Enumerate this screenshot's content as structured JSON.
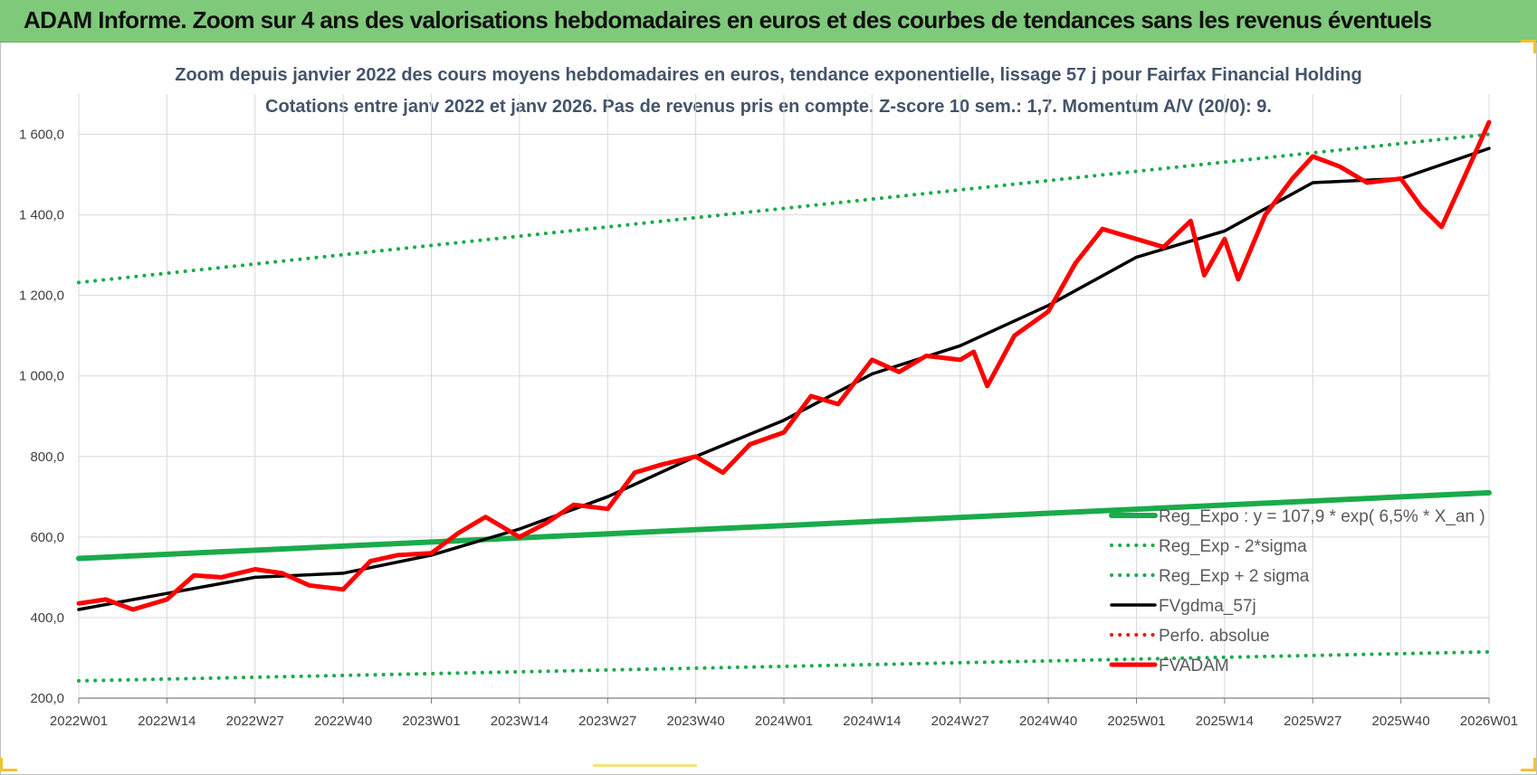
{
  "banner": {
    "title": "ADAM Informe. Zoom sur 4 ans des valorisations hebdomadaires en euros et des courbes de tendances sans les revenus éventuels",
    "background": "#7fc97a"
  },
  "chart_data": {
    "type": "line",
    "title_line1": "Zoom depuis janvier 2022 des cours moyens hebdomadaires en euros, tendance exponentielle, lissage 57 j pour Fairfax Financial Holding",
    "title_line2": "Cotations entre janv 2022 et janv 2026. Pas de revenus pris en compte. Z-score 10 sem.: 1,7. Momentum A/V (20/0): 9.",
    "x_tick_labels": [
      "2022W01",
      "2022W14",
      "2022W27",
      "2022W40",
      "2023W01",
      "2023W14",
      "2023W27",
      "2023W40",
      "2024W01",
      "2024W14",
      "2024W27",
      "2024W40",
      "2025W01",
      "2025W14",
      "2025W27",
      "2025W40",
      "2026W01"
    ],
    "y_tick_labels": [
      "200,0",
      "400,0",
      "600,0",
      "800,0",
      "1 000,0",
      "1 200,0",
      "1 400,0",
      "1 600,0"
    ],
    "y_ticks": [
      200,
      400,
      600,
      800,
      1000,
      1200,
      1400,
      1600
    ],
    "ylim": [
      200,
      1700
    ],
    "grid": true,
    "legend_position": "bottom-right",
    "series": [
      {
        "name": "Reg_Expo : y = 107,9 * exp( 6,5% *  X_an )",
        "color": "#1aab4b",
        "style": "solid-thick",
        "x": [
          "2022W01",
          "2026W01"
        ],
        "y": [
          547,
          710
        ]
      },
      {
        "name": "Reg_Exp - 2*sigma",
        "color": "#1aab4b",
        "style": "dotted",
        "x": [
          "2022W01",
          "2026W01"
        ],
        "y": [
          243,
          315
        ]
      },
      {
        "name": "Reg_Exp + 2 sigma",
        "color": "#1aab4b",
        "style": "dotted",
        "x": [
          "2022W01",
          "2026W01"
        ],
        "y": [
          1232,
          1600
        ]
      },
      {
        "name": "FVgdma_57j",
        "color": "#000000",
        "style": "solid",
        "x": [
          "2022W01",
          "2022W14",
          "2022W27",
          "2022W40",
          "2023W01",
          "2023W14",
          "2023W27",
          "2023W40",
          "2024W01",
          "2024W14",
          "2024W27",
          "2024W40",
          "2025W01",
          "2025W14",
          "2025W27",
          "2025W40",
          "2026W01"
        ],
        "y": [
          420,
          460,
          500,
          510,
          555,
          620,
          700,
          800,
          890,
          1005,
          1075,
          1175,
          1295,
          1360,
          1480,
          1490,
          1565
        ]
      },
      {
        "name": "Perfo. absolue",
        "color": "#e0201b",
        "style": "dotted",
        "x": [],
        "y": []
      },
      {
        "name": "FVADAM",
        "color": "#ff0000",
        "style": "solid-thick",
        "x": [
          "2022W01",
          "2022W05",
          "2022W09",
          "2022W14",
          "2022W18",
          "2022W22",
          "2022W27",
          "2022W31",
          "2022W35",
          "2022W40",
          "2022W44",
          "2022W48",
          "2023W01",
          "2023W05",
          "2023W09",
          "2023W14",
          "2023W18",
          "2023W22",
          "2023W27",
          "2023W31",
          "2023W35",
          "2023W40",
          "2023W44",
          "2023W48",
          "2024W01",
          "2024W05",
          "2024W09",
          "2024W14",
          "2024W18",
          "2024W22",
          "2024W27",
          "2024W29",
          "2024W31",
          "2024W35",
          "2024W40",
          "2024W44",
          "2024W48",
          "2025W01",
          "2025W05",
          "2025W09",
          "2025W11",
          "2025W14",
          "2025W16",
          "2025W20",
          "2025W24",
          "2025W27",
          "2025W31",
          "2025W35",
          "2025W40",
          "2025W43",
          "2025W46",
          "2025W49",
          "2026W01"
        ],
        "y": [
          435,
          445,
          420,
          445,
          505,
          500,
          520,
          510,
          480,
          470,
          540,
          555,
          560,
          610,
          650,
          600,
          635,
          680,
          670,
          760,
          780,
          800,
          760,
          830,
          860,
          950,
          930,
          1040,
          1010,
          1050,
          1040,
          1060,
          975,
          1100,
          1160,
          1280,
          1365,
          1340,
          1320,
          1385,
          1250,
          1340,
          1240,
          1400,
          1490,
          1545,
          1520,
          1480,
          1490,
          1420,
          1370,
          1480,
          1630
        ]
      }
    ]
  }
}
